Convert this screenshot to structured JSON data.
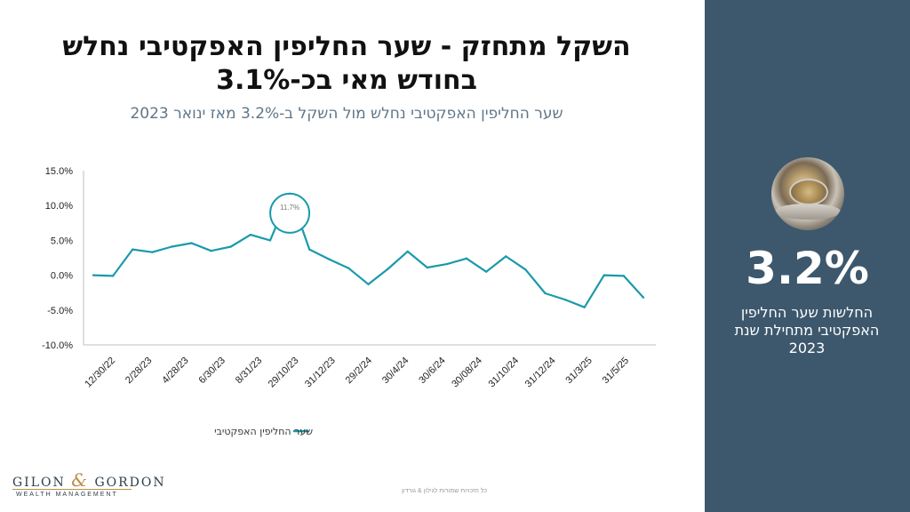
{
  "title": "השקל מתחזק - שער החליפין האפקטיבי נחלש בחודש מאי בכ-3.1%",
  "subtitle": "שער החליפין  האפקטיבי נחלש מול השקל ב-3.2% מאז ינואר 2023",
  "side_panel": {
    "value": "3.2%",
    "description": "החלשות שער החליפין האפקטיבי מתחילת שנת 2023",
    "image": "coins-image"
  },
  "footer": "כל הזכויות שמורות לגילון & גורדון",
  "logo": {
    "name_left": "GILON",
    "amp": "&",
    "name_right": "GORDON",
    "tagline": "WEALTH MANAGEMENT"
  },
  "colors": {
    "line": "#1a9aaa",
    "side_panel": "#3d586d",
    "highlight": "#1a9aaa"
  },
  "chart_data": {
    "type": "line",
    "x_tick_labels": [
      "12/30/22",
      "2/28/23",
      "4/28/23",
      "6/30/23",
      "8/31/23",
      "29/10/23",
      "31/12/23",
      "29/2/24",
      "30/4/24",
      "30/6/24",
      "30/08/24",
      "31/10/24",
      "31/12/24",
      "31/3/25",
      "31/5/25"
    ],
    "series": [
      {
        "name": "שער החליפין האפקטיבי",
        "values": [
          0.0,
          -0.1,
          3.7,
          3.3,
          4.1,
          4.6,
          3.5,
          4.1,
          5.8,
          5.0,
          11.7,
          3.7,
          2.3,
          1.0,
          -1.3,
          0.9,
          3.4,
          1.1,
          1.6,
          2.4,
          0.5,
          2.7,
          0.8,
          -2.6,
          -3.5,
          -4.6,
          0.0,
          -0.1,
          -3.2
        ]
      }
    ],
    "annotation": {
      "point_index": 10,
      "label": "11.7%"
    },
    "ylim": [
      -10,
      15
    ],
    "y_ticks": [
      -10,
      -5,
      0,
      5,
      10,
      15
    ],
    "y_tick_labels": [
      "-10.0%",
      "-5.0%",
      "0.0%",
      "5.0%",
      "10.0%",
      "15.0%"
    ],
    "grid": false,
    "legend_position": "bottom-center"
  }
}
